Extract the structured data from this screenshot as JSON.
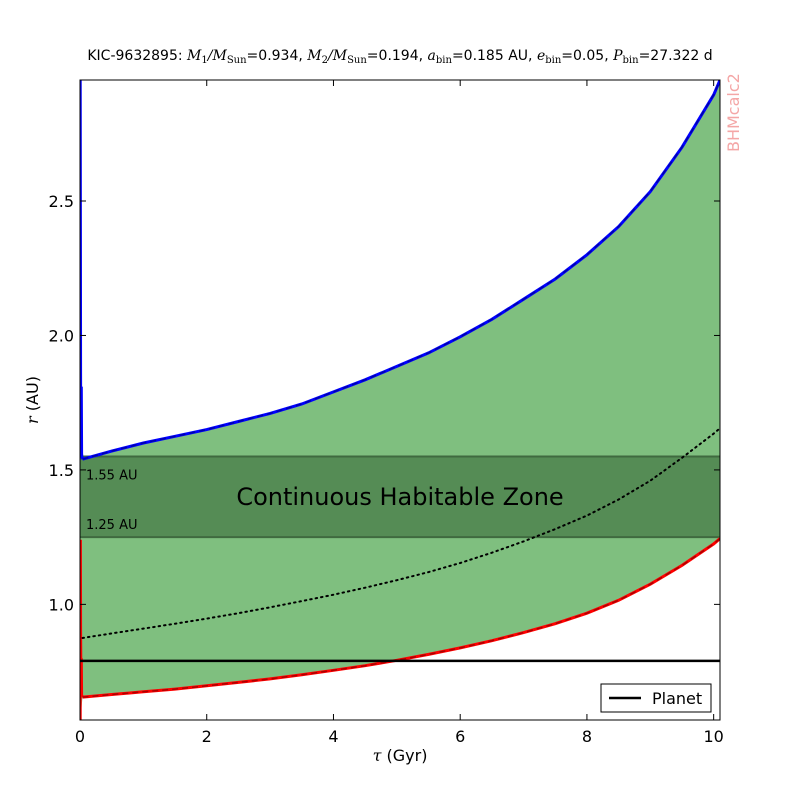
{
  "chart_data": {
    "type": "area",
    "title": "KIC-9632895: M1/MSun=0.934, M2/MSun=0.194, abin=0.185 AU, ebin=0.05, Pbin=27.322 d",
    "title_parts": {
      "prefix": "KIC-9632895: ",
      "m1": "0.934",
      "m2": "0.194",
      "abin": "0.185 AU",
      "ebin": "0.05",
      "pbin": "27.322 d"
    },
    "xlabel": "τ (Gyr)",
    "ylabel": "r (AU)",
    "xlim": [
      0,
      10.1
    ],
    "ylim": [
      0.57,
      2.95
    ],
    "xticks": [
      0,
      2,
      4,
      6,
      8,
      10
    ],
    "yticks": [
      1.0,
      1.5,
      2.0,
      2.5
    ],
    "xtick_labels": [
      "0",
      "2",
      "4",
      "6",
      "8",
      "10"
    ],
    "ytick_labels": [
      "1.0",
      "1.5",
      "2.0",
      "2.5"
    ],
    "grid": false,
    "series": [
      {
        "name": "outer",
        "color": "#0000ff",
        "x": [
          0.04,
          0.5,
          1,
          1.5,
          2,
          2.5,
          3,
          3.5,
          4,
          4.5,
          5,
          5.5,
          6,
          6.5,
          7,
          7.5,
          8,
          8.5,
          9,
          9.5,
          10,
          10.1
        ],
        "y": [
          1.54,
          1.57,
          1.6,
          1.625,
          1.65,
          1.68,
          1.71,
          1.745,
          1.79,
          1.835,
          1.885,
          1.935,
          1.995,
          2.06,
          2.135,
          2.21,
          2.3,
          2.405,
          2.535,
          2.7,
          2.895,
          2.95
        ]
      },
      {
        "name": "inner",
        "color": "#ff0000",
        "x": [
          0.04,
          0.5,
          1,
          1.5,
          2,
          2.5,
          3,
          3.5,
          4,
          4.5,
          5,
          5.5,
          6,
          6.5,
          7,
          7.5,
          8,
          8.5,
          9,
          9.5,
          10,
          10.1
        ],
        "y": [
          0.655,
          0.665,
          0.675,
          0.685,
          0.697,
          0.71,
          0.723,
          0.738,
          0.755,
          0.772,
          0.792,
          0.814,
          0.838,
          0.865,
          0.895,
          0.928,
          0.967,
          1.015,
          1.075,
          1.145,
          1.225,
          1.245
        ]
      },
      {
        "name": "middle",
        "color": "#000000",
        "style": "dotted",
        "x": [
          0.04,
          0.5,
          1,
          1.5,
          2,
          2.5,
          3,
          3.5,
          4,
          4.5,
          5,
          5.5,
          6,
          6.5,
          7,
          7.5,
          8,
          8.5,
          9,
          9.5,
          10,
          10.1
        ],
        "y": [
          0.875,
          0.892,
          0.91,
          0.928,
          0.947,
          0.967,
          0.989,
          1.012,
          1.036,
          1.062,
          1.09,
          1.12,
          1.154,
          1.192,
          1.234,
          1.28,
          1.33,
          1.39,
          1.46,
          1.545,
          1.635,
          1.655
        ]
      },
      {
        "name": "Planet",
        "color": "#000000",
        "x": [
          0,
          10.1
        ],
        "y": [
          0.79,
          0.79
        ]
      }
    ],
    "early_spikes": {
      "outer_x": [
        0.003,
        0.006,
        0.01,
        0.015,
        0.02,
        0.025,
        0.03,
        0.04
      ],
      "outer_y": [
        2.95,
        2.4,
        1.8,
        1.6,
        1.81,
        1.56,
        1.55,
        1.54
      ],
      "inner_x": [
        0.003,
        0.006,
        0.01,
        0.015,
        0.02,
        0.025,
        0.03,
        0.04
      ],
      "inner_y": [
        0.57,
        1.24,
        0.9,
        0.68,
        0.8,
        0.66,
        0.66,
        0.655
      ]
    },
    "habitable_zone": {
      "inner_au": 1.25,
      "outer_au": 1.55,
      "label": "Continuous Habitable Zone",
      "inner_label": "1.25 AU",
      "outer_label": "1.55 AU"
    },
    "legend": {
      "placement": "lower-right",
      "entries": [
        "Planet"
      ]
    },
    "colors": {
      "fill": "#7fbf7f",
      "hz_fill": "#558c55",
      "outer": "#0000ff",
      "inner": "#ff0000",
      "planet": "#000000"
    },
    "watermark": "BHMcalc2"
  }
}
